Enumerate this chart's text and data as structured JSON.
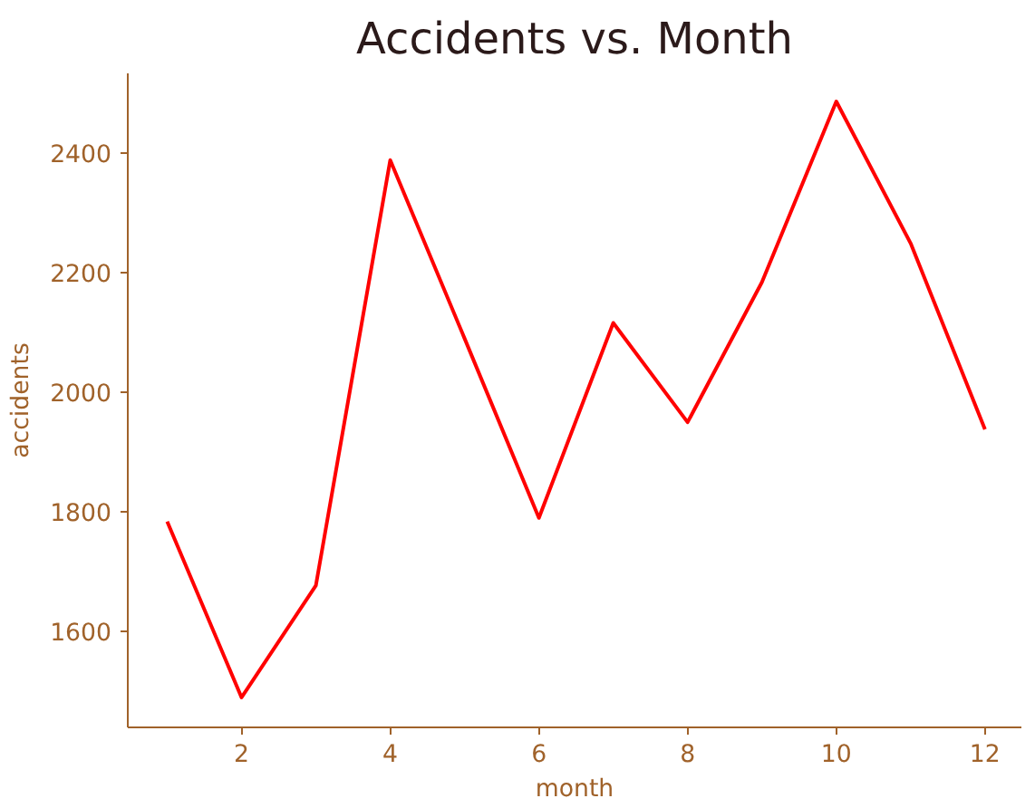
{
  "chart_data": {
    "type": "line",
    "title": "Accidents vs. Month",
    "xlabel": "month",
    "ylabel": "accidents",
    "x": [
      1,
      2,
      3,
      4,
      5,
      6,
      7,
      8,
      9,
      10,
      11,
      12
    ],
    "series": [
      {
        "color": "#ff0000",
        "values": [
          1784,
          1490,
          1677,
          2388,
          2090,
          1790,
          2116,
          1950,
          2184,
          2486,
          2249,
          1938
        ]
      }
    ],
    "xlim": [
      0.47,
      12.49
    ],
    "ylim": [
      1440,
      2533
    ],
    "xticks": [
      2,
      4,
      6,
      8,
      10,
      12
    ],
    "yticks": [
      1600,
      1800,
      2000,
      2200,
      2400
    ],
    "grid": false,
    "marker": "none",
    "line_style": "solid"
  }
}
